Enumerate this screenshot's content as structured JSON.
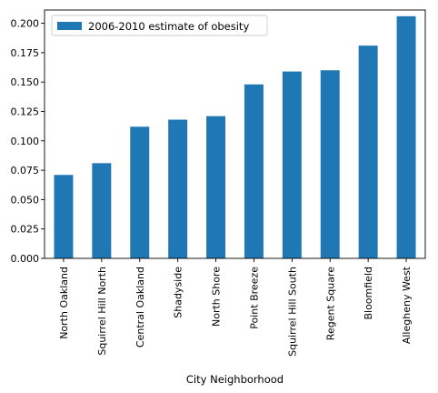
{
  "chart_data": {
    "type": "bar",
    "categories": [
      "North Oakland",
      "Squirrel Hill North",
      "Central Oakland",
      "Shadyside",
      "North Shore",
      "Point Breeze",
      "Squirrel Hill South",
      "Regent Square",
      "Bloomfield",
      "Allegheny West"
    ],
    "series": [
      {
        "name": "2006-2010 estimate of obesity",
        "values": [
          0.071,
          0.081,
          0.112,
          0.118,
          0.121,
          0.148,
          0.159,
          0.16,
          0.181,
          0.206
        ],
        "color": "#1f77b4"
      }
    ],
    "xlabel": "City Neighborhood",
    "ylabel": "",
    "ylim": [
      0,
      0.2113
    ],
    "yticks": [
      0.0,
      0.025,
      0.05,
      0.075,
      0.1,
      0.125,
      0.15,
      0.175,
      0.2
    ],
    "ytick_labels": [
      "0.000",
      "0.025",
      "0.050",
      "0.075",
      "0.100",
      "0.125",
      "0.150",
      "0.175",
      "0.200"
    ],
    "grid": false,
    "legend_position": "top-left"
  }
}
